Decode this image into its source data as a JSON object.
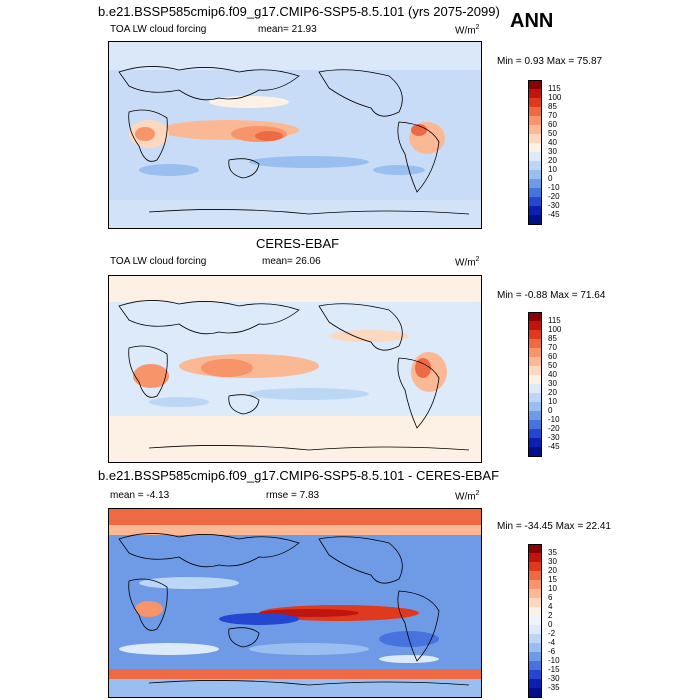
{
  "header": {
    "title": "b.e21.BSSP585cmip6.f09_g17.CMIP6-SSP5-8.5.101 (yrs 2075-2099)",
    "season": "ANN"
  },
  "panels": [
    {
      "id": "model",
      "variable": "TOA LW cloud forcing",
      "stat_label": "mean=",
      "stat_value": "21.93",
      "units": "W/m",
      "units_exp": "2",
      "minmax": "Min =  0.93 Max =  75.87",
      "colorbar_labels": [
        "115",
        "100",
        "85",
        "70",
        "60",
        "50",
        "40",
        "30",
        "20",
        "10",
        "0",
        "-10",
        "-20",
        "-30",
        "-45"
      ],
      "colorbar_colors": [
        "#8b0000",
        "#c0140f",
        "#e03a1e",
        "#ee6a45",
        "#f7946a",
        "#fbb895",
        "#fcd8bf",
        "#fdf0e4",
        "#dceafa",
        "#bcd6f6",
        "#98bff0",
        "#6f9be6",
        "#4673de",
        "#2446d0",
        "#0d1fb0",
        "#001088"
      ]
    },
    {
      "id": "obs",
      "center_title": "CERES-EBAF",
      "variable": "TOA LW cloud forcing",
      "stat_label": "mean=",
      "stat_value": "26.06",
      "units": "W/m",
      "units_exp": "2",
      "minmax": "Min = -0.88 Max =  71.64",
      "colorbar_labels": [
        "115",
        "100",
        "85",
        "70",
        "60",
        "50",
        "40",
        "30",
        "20",
        "10",
        "0",
        "-10",
        "-20",
        "-30",
        "-45"
      ],
      "colorbar_colors": [
        "#8b0000",
        "#c0140f",
        "#e03a1e",
        "#ee6a45",
        "#f7946a",
        "#fbb895",
        "#fcd8bf",
        "#fdf0e4",
        "#dceafa",
        "#bcd6f6",
        "#98bff0",
        "#6f9be6",
        "#4673de",
        "#2446d0",
        "#0d1fb0",
        "#001088"
      ]
    },
    {
      "id": "diff",
      "title": "b.e21.BSSP585cmip6.f09_g17.CMIP6-SSP5-8.5.101 - CERES-EBAF",
      "stat_label": "mean =",
      "stat_value": "-4.13",
      "rmse_label": "rmse =",
      "rmse_value": "7.83",
      "units": "W/m",
      "units_exp": "2",
      "minmax": "Min = -34.45 Max =  22.41",
      "colorbar_labels": [
        "35",
        "30",
        "20",
        "15",
        "10",
        "6",
        "4",
        "2",
        "0",
        "-2",
        "-4",
        "-6",
        "-10",
        "-15",
        "-30",
        "-35"
      ],
      "colorbar_colors": [
        "#8b0000",
        "#c0140f",
        "#e03a1e",
        "#ee6a45",
        "#f7946a",
        "#fbb895",
        "#fcd8bf",
        "#fdf0e4",
        "#eef4fc",
        "#dceafa",
        "#bcd6f6",
        "#98bff0",
        "#6f9be6",
        "#4673de",
        "#2446d0",
        "#0d1fb0",
        "#001088"
      ]
    }
  ]
}
